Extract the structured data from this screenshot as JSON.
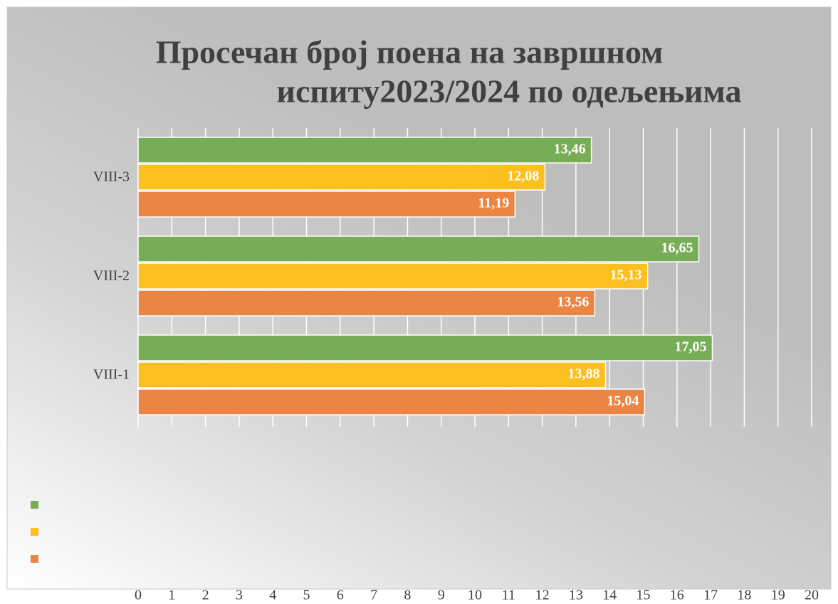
{
  "chart_data": {
    "type": "bar",
    "orientation": "horizontal",
    "title": [
      "Просечан број поена на завршном",
      "испиту2023/2024 по одељењима"
    ],
    "categories": [
      "VIII-1",
      "VIII-2",
      "VIII-3"
    ],
    "series": [
      {
        "color": "#77ad56",
        "values": [
          17.05,
          16.65,
          13.46
        ],
        "value_labels": [
          "17,05",
          "16,65",
          "13,46"
        ]
      },
      {
        "color": "#fbbf1f",
        "values": [
          13.88,
          15.13,
          12.08
        ],
        "value_labels": [
          "13,88",
          "15,13",
          "12,08"
        ]
      },
      {
        "color": "#ea8543",
        "values": [
          15.04,
          13.56,
          11.19
        ],
        "value_labels": [
          "15,04",
          "13,56",
          "11,19"
        ]
      }
    ],
    "xlim": [
      0,
      20
    ],
    "xticks": [
      0,
      1,
      2,
      3,
      4,
      5,
      6,
      7,
      8,
      9,
      10,
      11,
      12,
      13,
      14,
      15,
      16,
      17,
      18,
      19,
      20
    ],
    "grid": true
  }
}
